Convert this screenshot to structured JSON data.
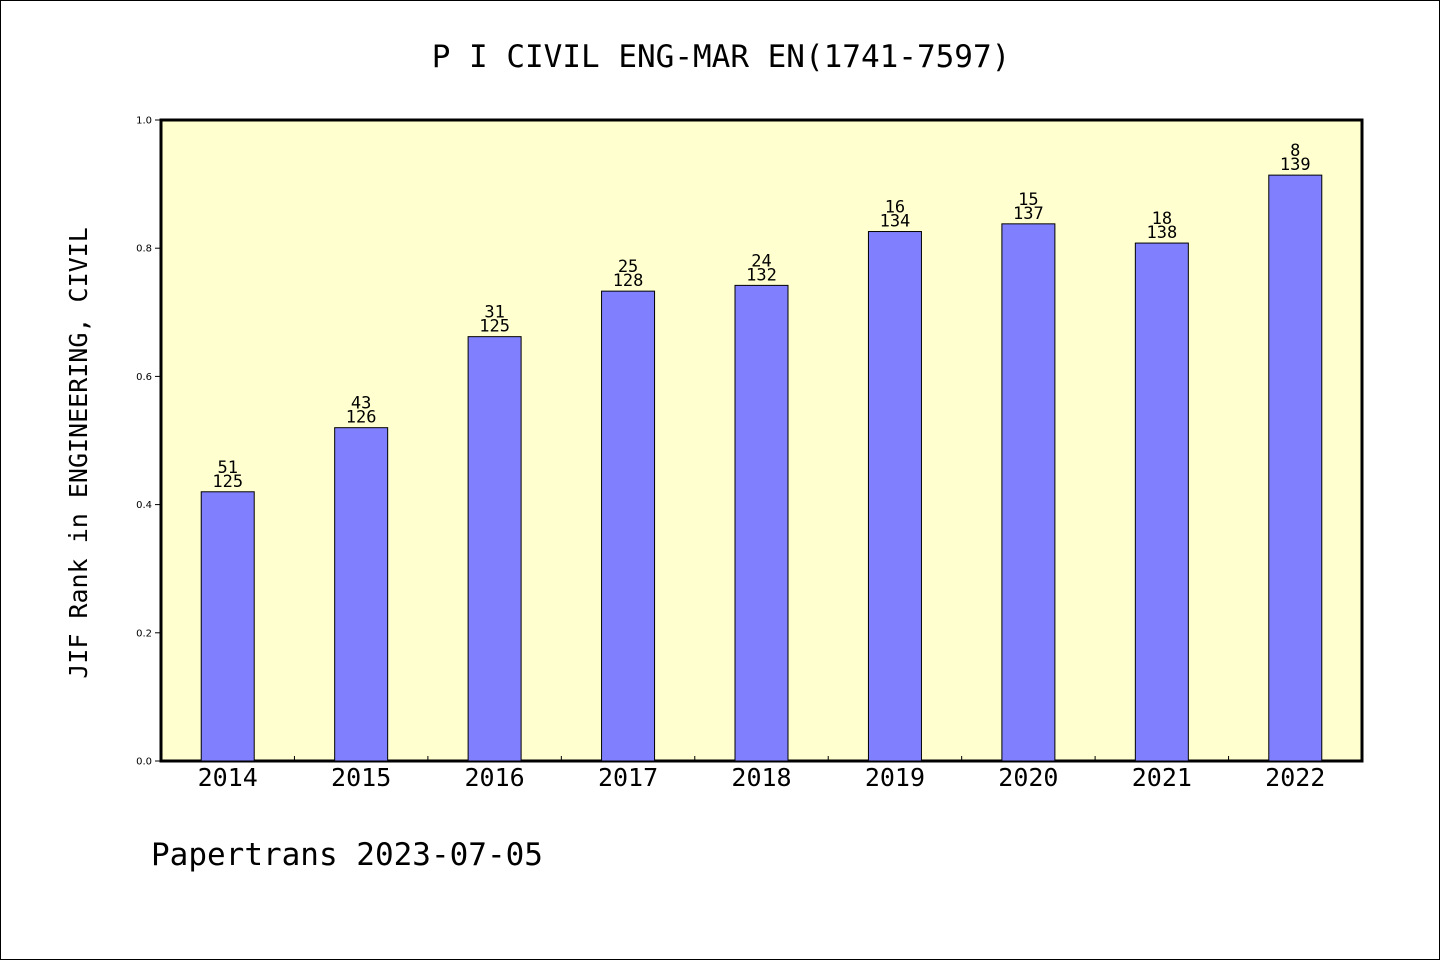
{
  "chart_data": {
    "type": "bar",
    "title": "P I CIVIL ENG-MAR EN(1741-7597)",
    "ylabel": "JIF Rank in ENGINEERING, CIVIL",
    "xlabel": "",
    "categories": [
      "2014",
      "2015",
      "2016",
      "2017",
      "2018",
      "2019",
      "2020",
      "2021",
      "2022"
    ],
    "values": [
      0.42,
      0.52,
      0.662,
      0.733,
      0.742,
      0.826,
      0.838,
      0.808,
      0.914
    ],
    "rank": [
      "51",
      "43",
      "31",
      "25",
      "24",
      "16",
      "15",
      "18",
      "8"
    ],
    "total": [
      "125",
      "126",
      "125",
      "128",
      "132",
      "134",
      "137",
      "138",
      "139"
    ],
    "ylim": [
      0,
      1.0
    ],
    "yticks": [
      "0.0",
      "0.2",
      "0.4",
      "0.6",
      "0.8",
      "1.0"
    ],
    "grid": false,
    "colors": {
      "bar": "#8080ff",
      "plot_bg": "#ffffd0"
    }
  },
  "footer": "Papertrans 2023-07-05"
}
